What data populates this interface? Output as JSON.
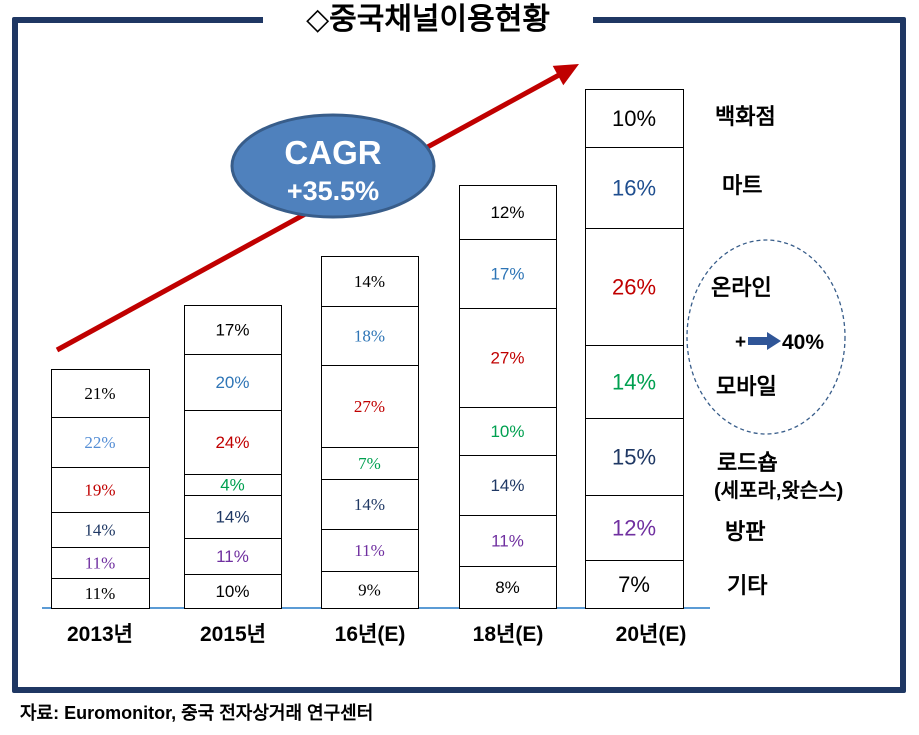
{
  "title": "◇중국채널이용현황",
  "cagr": {
    "label": "CAGR",
    "value": "+35.5%"
  },
  "online_mobile_note": {
    "prefix": "+",
    "icon": "right-arrow-icon",
    "value": "40%"
  },
  "source": "자료: Euromonitor, 중국 전자상거래 연구센터",
  "chart_data": {
    "type": "bar",
    "stacked": true,
    "categories": [
      "2013년",
      "2015년",
      "16년(E)",
      "18년(E)",
      "20년(E)"
    ],
    "unit": "%",
    "legend": "right",
    "grid": false,
    "series": [
      {
        "name": "기타",
        "values": [
          11,
          10,
          9,
          8,
          7
        ],
        "color": "#000000"
      },
      {
        "name": "방판",
        "values": [
          11,
          11,
          11,
          11,
          12
        ],
        "color": "#7030a0"
      },
      {
        "name": "로드숍",
        "sublabel": "(세포라,왓슨스)",
        "values": [
          14,
          14,
          14,
          14,
          15
        ],
        "color": "#1f3864"
      },
      {
        "name": "모바일",
        "values": [
          null,
          4,
          7,
          10,
          14
        ],
        "color": "#00a050"
      },
      {
        "name": "온라인",
        "values": [
          19,
          24,
          27,
          27,
          26
        ],
        "color": "#c00000"
      },
      {
        "name": "마트",
        "values": [
          22,
          20,
          18,
          17,
          16
        ],
        "color": "#2e75b6",
        "colors": [
          "#558ed5",
          "#2e75b6",
          "#2e75b6",
          "#2e75b6",
          "#1f4e8f"
        ]
      },
      {
        "name": "백화점",
        "values": [
          21,
          17,
          14,
          12,
          10
        ],
        "color": "#000000"
      }
    ]
  }
}
